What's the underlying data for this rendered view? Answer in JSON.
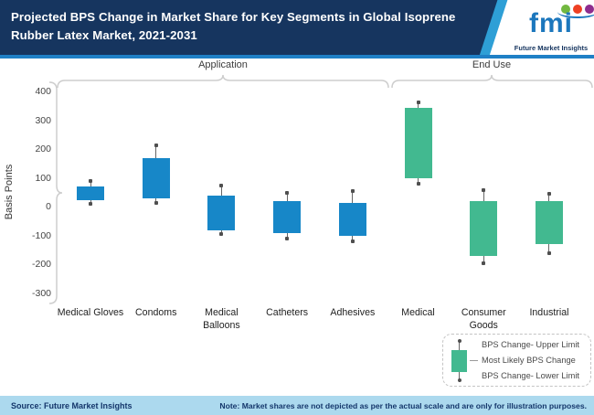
{
  "header": {
    "title": "Projected BPS Change in Market Share for Key Segments in Global Isoprene Rubber Latex Market, 2021-2031"
  },
  "logo": {
    "text": "fmi",
    "caption": "Future Market Insights",
    "dot_colors": [
      "#72B840",
      "#EE4023",
      "#8E2C8E"
    ],
    "brand_blue": "#1C77BD"
  },
  "chart_data": {
    "type": "candlestick-range",
    "title": "Projected BPS Change in Market Share for Key Segments in Global Isoprene Rubber Latex Market, 2021-2031",
    "ylabel": "Basis Points",
    "ylim": [
      -300,
      400
    ],
    "yticks": [
      400,
      300,
      200,
      100,
      0,
      -100,
      -200,
      -300
    ],
    "grid": false,
    "groups": [
      {
        "label": "Application",
        "count": 5
      },
      {
        "label": "End Use",
        "count": 3
      }
    ],
    "colors": {
      "application": "#1787C8",
      "end_use": "#42B990"
    },
    "points": [
      {
        "category": "Medical Gloves",
        "group": "Application",
        "upper_limit": 90,
        "most_likely_high": 70,
        "most_likely_low": 25,
        "lower_limit": 10,
        "color": "#1787C8"
      },
      {
        "category": "Condoms",
        "group": "Application",
        "upper_limit": 215,
        "most_likely_high": 170,
        "most_likely_low": 30,
        "lower_limit": 15,
        "color": "#1787C8"
      },
      {
        "category": "Medical Balloons",
        "group": "Application",
        "upper_limit": 75,
        "most_likely_high": 40,
        "most_likely_low": -80,
        "lower_limit": -95,
        "color": "#1787C8"
      },
      {
        "category": "Catheters",
        "group": "Application",
        "upper_limit": 50,
        "most_likely_high": 20,
        "most_likely_low": -90,
        "lower_limit": -110,
        "color": "#1787C8"
      },
      {
        "category": "Adhesives",
        "group": "Application",
        "upper_limit": 55,
        "most_likely_high": 15,
        "most_likely_low": -100,
        "lower_limit": -120,
        "color": "#1787C8"
      },
      {
        "category": "Medical",
        "group": "End Use",
        "upper_limit": 365,
        "most_likely_high": 345,
        "most_likely_low": 100,
        "lower_limit": 80,
        "color": "#42B990"
      },
      {
        "category": "Consumer Goods",
        "group": "End Use",
        "upper_limit": 60,
        "most_likely_high": 20,
        "most_likely_low": -170,
        "lower_limit": -195,
        "color": "#42B990"
      },
      {
        "category": "Industrial",
        "group": "End Use",
        "upper_limit": 45,
        "most_likely_high": 20,
        "most_likely_low": -130,
        "lower_limit": -160,
        "color": "#42B990"
      }
    ],
    "legend_position": "bottom-right"
  },
  "legend": {
    "items": [
      "BPS Change- Upper Limit",
      "Most Likely BPS Change",
      "BPS Change- Lower Limit"
    ],
    "swatch_color": "#42B990"
  },
  "footer": {
    "source": "Source: Future Market Insights",
    "note": "Note: Market shares are not depicted as per the actual scale and are only for illustration purposes."
  }
}
